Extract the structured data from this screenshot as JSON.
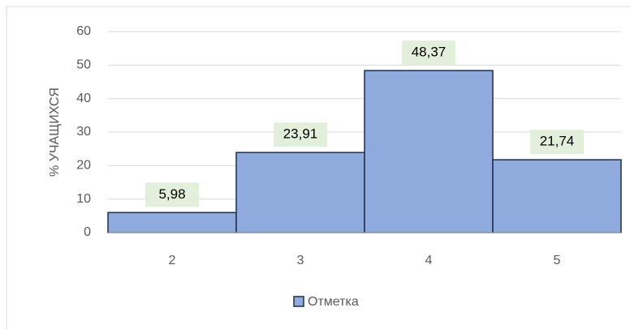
{
  "chart_data": {
    "type": "bar",
    "categories": [
      "2",
      "3",
      "4",
      "5"
    ],
    "series": [
      {
        "name": "Отметка",
        "color": "#8faadc",
        "values": [
          5.98,
          23.91,
          48.37,
          21.74
        ],
        "value_labels": [
          "5,98",
          "23,91",
          "48,37",
          "21,74"
        ]
      }
    ],
    "y_label": "% УЧАЩИХСЯ",
    "ylim": [
      0,
      60
    ],
    "yticks": [
      0,
      10,
      20,
      30,
      40,
      50,
      60
    ],
    "grid": true,
    "legend": "bottom"
  }
}
